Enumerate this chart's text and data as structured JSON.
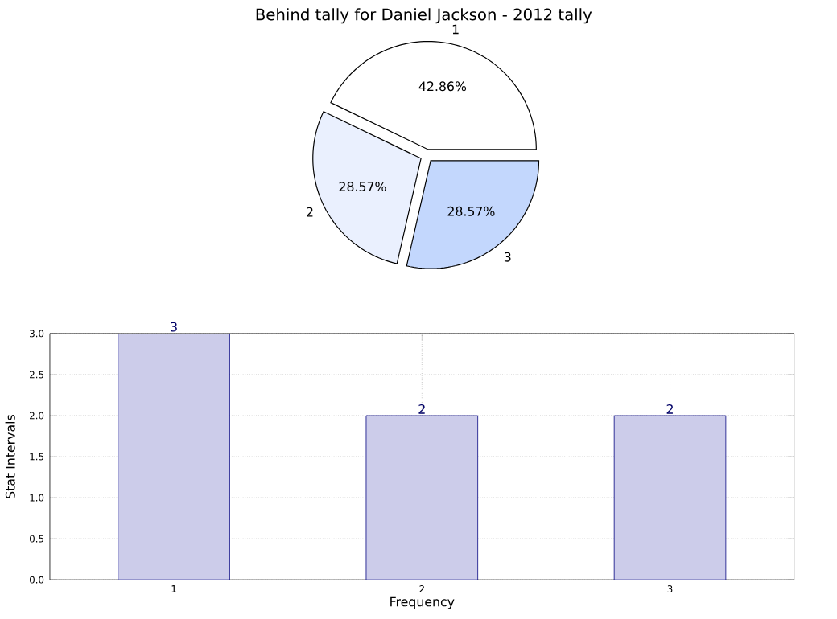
{
  "chart_data": [
    {
      "type": "pie",
      "title": "Behind tally for Daniel Jackson - 2012 tally",
      "categories": [
        "1",
        "2",
        "3"
      ],
      "values": [
        42.86,
        28.57,
        28.57
      ],
      "colors": [
        "#ffffff",
        "#eaf0fe",
        "#c3d7fd"
      ],
      "value_labels": [
        "42.86%",
        "28.57%",
        "28.57%"
      ]
    },
    {
      "type": "bar",
      "xlabel": "Frequency",
      "ylabel": "Stat Intervals",
      "categories": [
        "1",
        "2",
        "3"
      ],
      "values": [
        3,
        2,
        2
      ],
      "color": "#ccccea",
      "ylim": [
        0,
        3
      ],
      "yticks": [
        {
          "value": 0,
          "label": "0.0"
        },
        {
          "value": 0.5,
          "label": "0.5"
        },
        {
          "value": 1,
          "label": "1.0"
        },
        {
          "value": 1.5,
          "label": "1.5"
        },
        {
          "value": 2,
          "label": "2.0"
        },
        {
          "value": 2.5,
          "label": "2.5"
        },
        {
          "value": 3,
          "label": "3.0"
        }
      ],
      "grid": true,
      "data_labels": true
    }
  ]
}
